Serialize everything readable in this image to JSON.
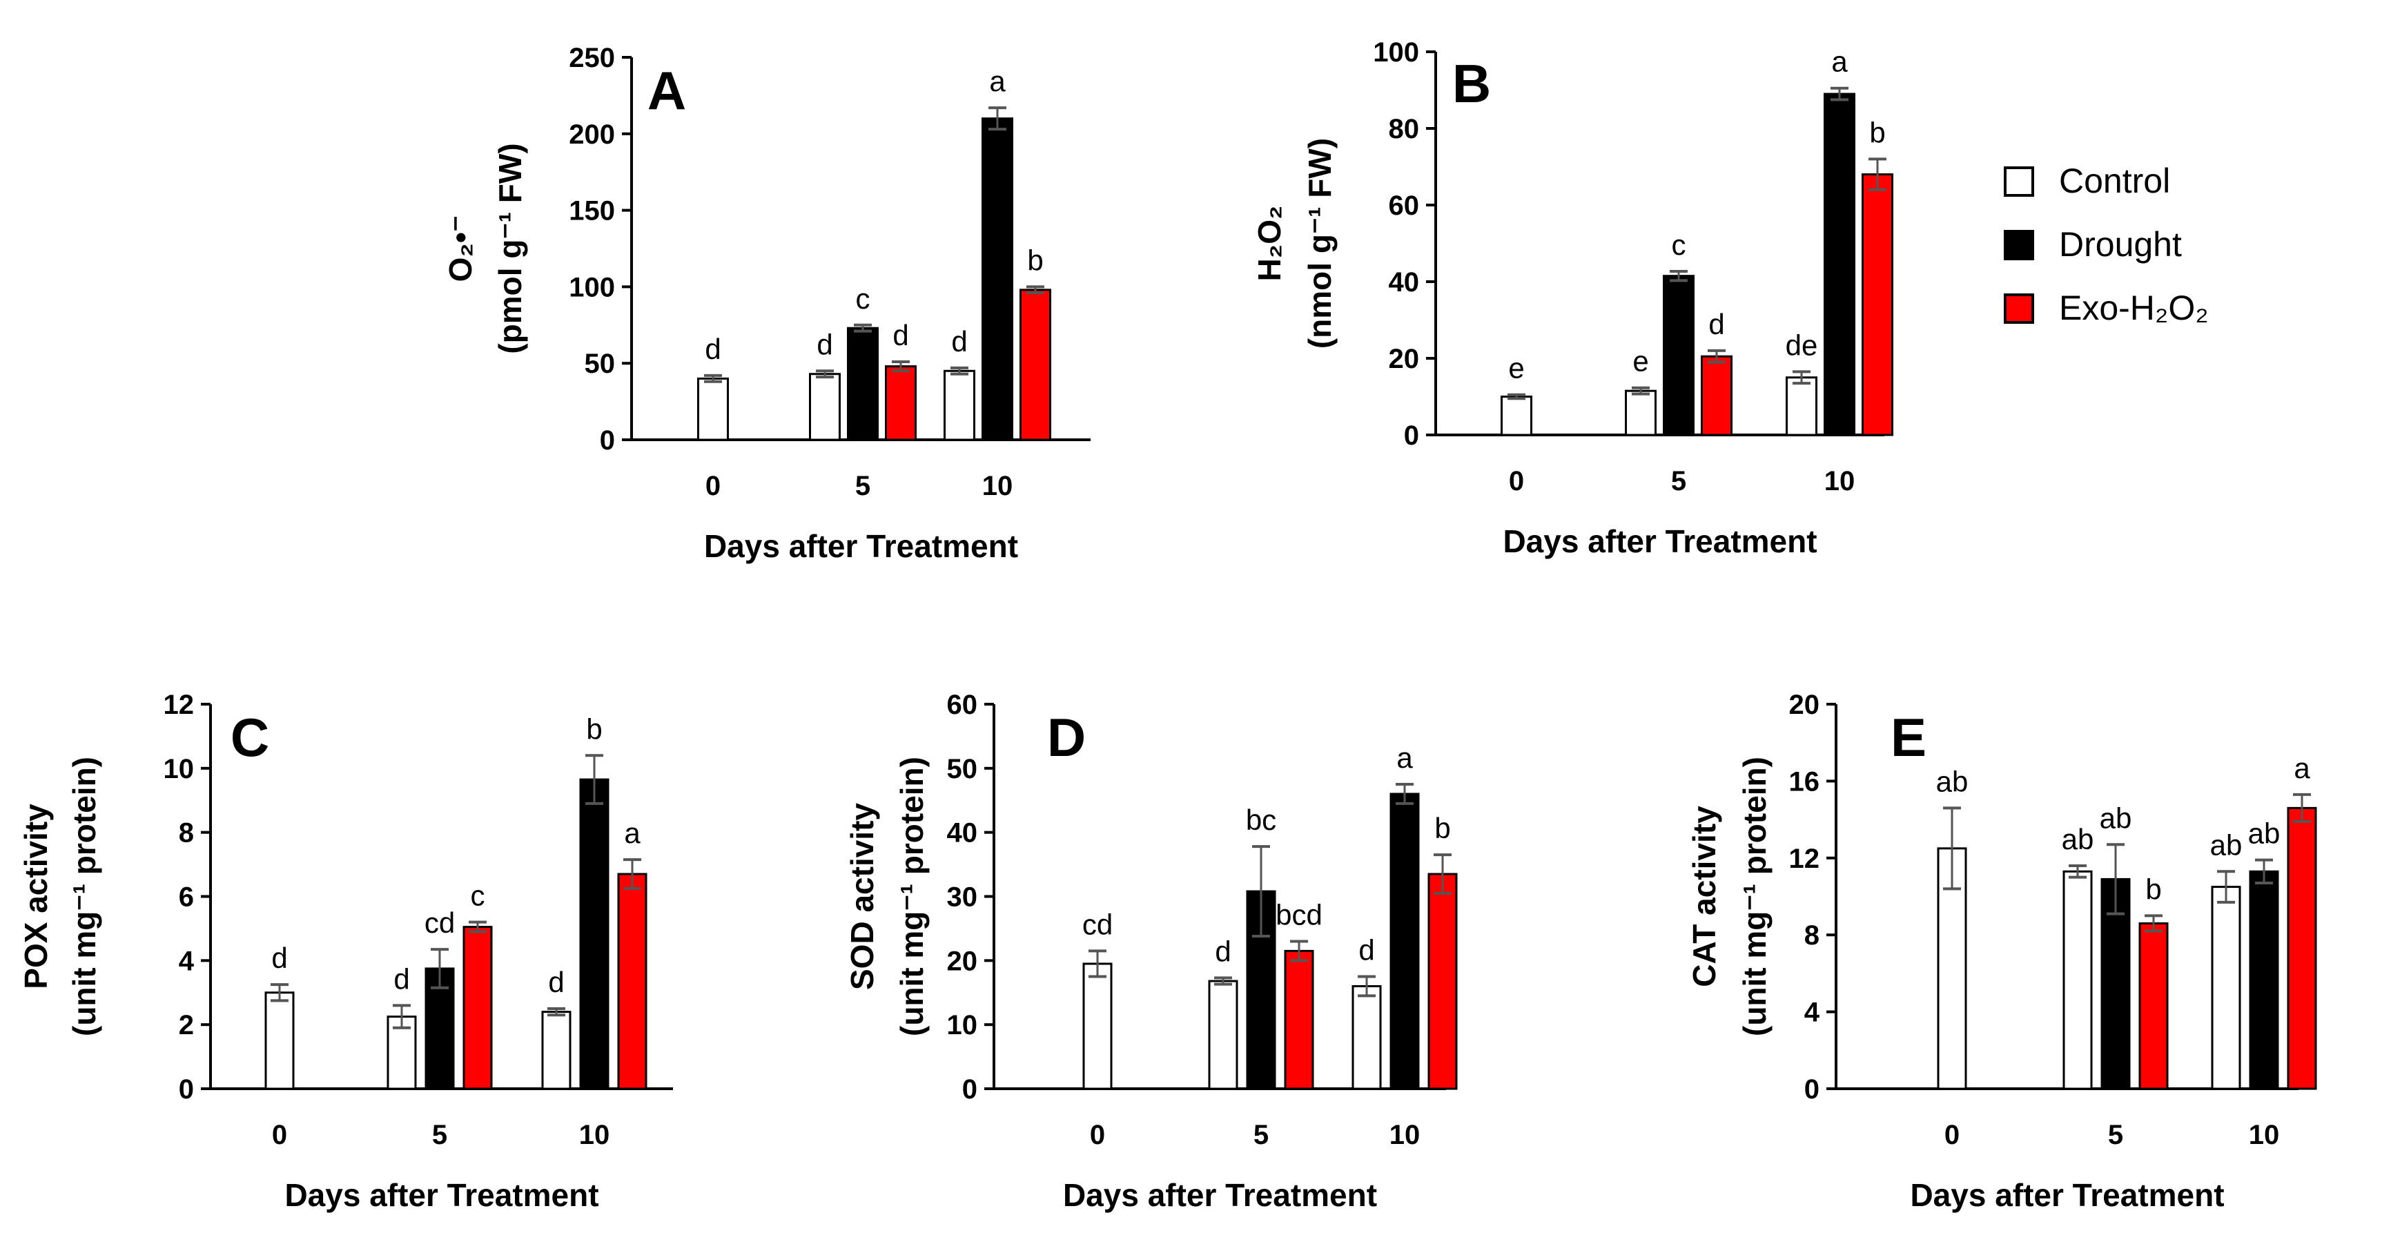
{
  "colors": {
    "control": "#ffffff",
    "drought": "#000000",
    "exo": "#ff0000",
    "errorbar": "#555555"
  },
  "legend": {
    "items": [
      {
        "series": "control",
        "label": "Control"
      },
      {
        "series": "drought",
        "label": "Drought"
      },
      {
        "series": "exo",
        "label": "Exo-H₂O₂"
      }
    ]
  },
  "chart_data": [
    {
      "type": "bar",
      "panel": "A",
      "categories": [
        "0",
        "5",
        "10"
      ],
      "xlabel": "Days after Treatment",
      "ylabel_main": "O₂•⁻",
      "ylabel_unit": "(pmol g⁻¹ FW)",
      "ylim": [
        0,
        250
      ],
      "yticks": [
        "0",
        "50",
        "100",
        "150",
        "200",
        "250"
      ],
      "series": [
        {
          "name": "Control",
          "key": "control",
          "values": [
            40,
            43,
            45
          ],
          "errors": [
            2,
            2,
            2
          ],
          "letters": [
            "d",
            "d",
            "d"
          ]
        },
        {
          "name": "Drought",
          "key": "drought",
          "values": [
            null,
            73,
            210
          ],
          "errors": [
            null,
            2,
            7
          ],
          "letters": [
            null,
            "c",
            "a"
          ]
        },
        {
          "name": "Exo-H₂O₂",
          "key": "exo",
          "values": [
            null,
            48,
            98
          ],
          "errors": [
            null,
            3,
            2
          ],
          "letters": [
            null,
            "d",
            "b"
          ]
        }
      ]
    },
    {
      "type": "bar",
      "panel": "B",
      "categories": [
        "0",
        "5",
        "10"
      ],
      "xlabel": "Days after Treatment",
      "ylabel_main": "H₂O₂",
      "ylabel_unit": "(nmol g⁻¹ FW)",
      "ylim": [
        0,
        100
      ],
      "yticks": [
        "0",
        "20",
        "40",
        "60",
        "80",
        "100"
      ],
      "series": [
        {
          "name": "Control",
          "key": "control",
          "values": [
            10,
            11.5,
            15
          ],
          "errors": [
            0.5,
            0.8,
            1.5
          ],
          "letters": [
            "e",
            "e",
            "de"
          ]
        },
        {
          "name": "Drought",
          "key": "drought",
          "values": [
            null,
            41.5,
            89
          ],
          "errors": [
            null,
            1.2,
            1.5
          ],
          "letters": [
            null,
            "c",
            "a"
          ]
        },
        {
          "name": "Exo-H₂O₂",
          "key": "exo",
          "values": [
            null,
            20.5,
            68
          ],
          "errors": [
            null,
            1.5,
            4
          ],
          "letters": [
            null,
            "d",
            "b"
          ]
        }
      ]
    },
    {
      "type": "bar",
      "panel": "C",
      "categories": [
        "0",
        "5",
        "10"
      ],
      "xlabel": "Days after Treatment",
      "ylabel_main": "POX activity",
      "ylabel_unit": "(unit mg⁻¹ protein)",
      "ylim": [
        0,
        12
      ],
      "yticks": [
        "0",
        "2",
        "4",
        "6",
        "8",
        "10",
        "12"
      ],
      "series": [
        {
          "name": "Control",
          "key": "control",
          "values": [
            3.0,
            2.25,
            2.4
          ],
          "errors": [
            0.25,
            0.35,
            0.1
          ],
          "letters": [
            "d",
            "d",
            "d"
          ]
        },
        {
          "name": "Drought",
          "key": "drought",
          "values": [
            null,
            3.75,
            9.65
          ],
          "errors": [
            null,
            0.6,
            0.75
          ],
          "letters": [
            null,
            "cd",
            "b"
          ]
        },
        {
          "name": "Exo-H₂O₂",
          "key": "exo",
          "values": [
            null,
            5.05,
            6.7
          ],
          "errors": [
            null,
            0.15,
            0.45
          ],
          "letters": [
            null,
            "c",
            "a"
          ]
        }
      ]
    },
    {
      "type": "bar",
      "panel": "D",
      "categories": [
        "0",
        "5",
        "10"
      ],
      "xlabel": "Days after Treatment",
      "ylabel_main": "SOD activity",
      "ylabel_unit": "(unit mg⁻¹ protein)",
      "ylim": [
        0,
        60
      ],
      "yticks": [
        "0",
        "10",
        "20",
        "30",
        "40",
        "50",
        "60"
      ],
      "series": [
        {
          "name": "Control",
          "key": "control",
          "values": [
            19.5,
            16.8,
            16.0
          ],
          "errors": [
            2,
            0.5,
            1.5
          ],
          "letters": [
            "cd",
            "d",
            "d"
          ]
        },
        {
          "name": "Drought",
          "key": "drought",
          "values": [
            null,
            30.8,
            46.0
          ],
          "errors": [
            null,
            7,
            1.5
          ],
          "letters": [
            null,
            "bc",
            "a"
          ]
        },
        {
          "name": "Exo-H₂O₂",
          "key": "exo",
          "values": [
            null,
            21.5,
            33.5
          ],
          "errors": [
            null,
            1.5,
            3
          ],
          "letters": [
            null,
            "bcd",
            "b"
          ]
        }
      ]
    },
    {
      "type": "bar",
      "panel": "E",
      "categories": [
        "0",
        "5",
        "10"
      ],
      "xlabel": "Days after Treatment",
      "ylabel_main": "CAT activity",
      "ylabel_unit": "(unit mg⁻¹ protein)",
      "ylim": [
        0,
        20
      ],
      "yticks": [
        "0",
        "4",
        "8",
        "12",
        "16",
        "20"
      ],
      "series": [
        {
          "name": "Control",
          "key": "control",
          "values": [
            12.5,
            11.3,
            10.5
          ],
          "errors": [
            2.1,
            0.3,
            0.8
          ],
          "letters": [
            "ab",
            "ab",
            "ab"
          ]
        },
        {
          "name": "Drought",
          "key": "drought",
          "values": [
            null,
            10.9,
            11.3
          ],
          "errors": [
            null,
            1.8,
            0.6
          ],
          "letters": [
            null,
            "ab",
            "ab"
          ]
        },
        {
          "name": "Exo-H₂O₂",
          "key": "exo",
          "values": [
            null,
            8.6,
            14.6
          ],
          "errors": [
            null,
            0.4,
            0.7
          ],
          "letters": [
            null,
            "b",
            "a"
          ]
        }
      ]
    }
  ]
}
